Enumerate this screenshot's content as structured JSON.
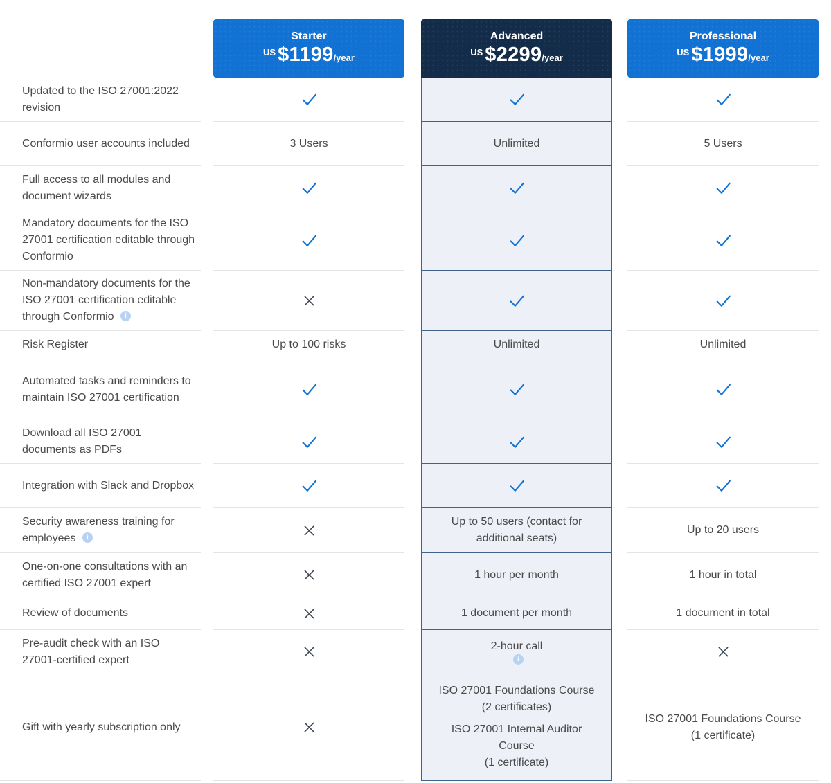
{
  "plans": [
    {
      "name": "Starter",
      "currency_prefix": "US",
      "price": "$1199",
      "period": "/year"
    },
    {
      "name": "Advanced",
      "currency_prefix": "US",
      "price": "$2299",
      "period": "/year"
    },
    {
      "name": "Professional",
      "currency_prefix": "US",
      "price": "$1999",
      "period": "/year"
    }
  ],
  "colors": {
    "accent_blue": "#1272d3",
    "dark_navy": "#122c49",
    "advanced_bg": "#edf1f7",
    "advanced_border": "#3f6288",
    "check": "#1272d3",
    "cross": "#3a444e"
  },
  "rows": [
    {
      "label": "Updated to the ISO 27001:2022 revision",
      "label_info": false,
      "cells": [
        {
          "type": "check"
        },
        {
          "type": "check"
        },
        {
          "type": "check"
        }
      ]
    },
    {
      "label": "Conformio user accounts included",
      "label_info": false,
      "cells": [
        {
          "type": "text",
          "value": "3 Users"
        },
        {
          "type": "text",
          "value": "Unlimited"
        },
        {
          "type": "text",
          "value": "5 Users"
        }
      ]
    },
    {
      "label": "Full access to all modules and document wizards",
      "label_info": false,
      "cells": [
        {
          "type": "check"
        },
        {
          "type": "check"
        },
        {
          "type": "check"
        }
      ]
    },
    {
      "label": "Mandatory documents for the ISO 27001 certification editable through Conformio",
      "label_info": false,
      "cells": [
        {
          "type": "check"
        },
        {
          "type": "check"
        },
        {
          "type": "check"
        }
      ]
    },
    {
      "label": "Non-mandatory documents for the ISO 27001 certification editable through Conformio",
      "label_info": true,
      "cells": [
        {
          "type": "cross"
        },
        {
          "type": "check"
        },
        {
          "type": "check"
        }
      ]
    },
    {
      "label": "Risk Register",
      "label_info": false,
      "cells": [
        {
          "type": "text",
          "value": "Up to 100 risks"
        },
        {
          "type": "text",
          "value": "Unlimited"
        },
        {
          "type": "text",
          "value": "Unlimited"
        }
      ]
    },
    {
      "label": "Automated tasks and reminders to maintain ISO 27001 certification",
      "label_info": false,
      "cells": [
        {
          "type": "check"
        },
        {
          "type": "check"
        },
        {
          "type": "check"
        }
      ]
    },
    {
      "label": "Download all ISO 27001 documents as PDFs",
      "label_info": false,
      "cells": [
        {
          "type": "check"
        },
        {
          "type": "check"
        },
        {
          "type": "check"
        }
      ]
    },
    {
      "label": "Integration with Slack and Dropbox",
      "label_info": false,
      "cells": [
        {
          "type": "check"
        },
        {
          "type": "check"
        },
        {
          "type": "check"
        }
      ]
    },
    {
      "label": "Security awareness training for employees",
      "label_info": true,
      "cells": [
        {
          "type": "cross"
        },
        {
          "type": "text",
          "value": "Up to 50 users (contact for additional seats)"
        },
        {
          "type": "text",
          "value": "Up to 20 users"
        }
      ]
    },
    {
      "label": "One-on-one consultations with an certified ISO 27001 expert",
      "label_info": false,
      "cells": [
        {
          "type": "cross"
        },
        {
          "type": "text",
          "value": "1 hour per month"
        },
        {
          "type": "text",
          "value": "1 hour in total"
        }
      ]
    },
    {
      "label": "Review of documents",
      "label_info": false,
      "cells": [
        {
          "type": "cross"
        },
        {
          "type": "text",
          "value": "1 document per month"
        },
        {
          "type": "text",
          "value": "1 document in total"
        }
      ]
    },
    {
      "label": "Pre-audit check with an ISO 27001-certified expert",
      "label_info": false,
      "cells": [
        {
          "type": "cross"
        },
        {
          "type": "text",
          "value": "2-hour call",
          "info": true
        },
        {
          "type": "cross"
        }
      ]
    },
    {
      "label": "Gift with yearly subscription only",
      "label_info": false,
      "cells": [
        {
          "type": "cross"
        },
        {
          "type": "stack",
          "values": [
            "ISO 27001 Foundations Course\n(2 certificates)",
            "ISO 27001 Internal Auditor\nCourse\n(1 certificate)"
          ]
        },
        {
          "type": "text",
          "value": "ISO 27001 Foundations Course\n(1 certificate)"
        }
      ]
    }
  ]
}
